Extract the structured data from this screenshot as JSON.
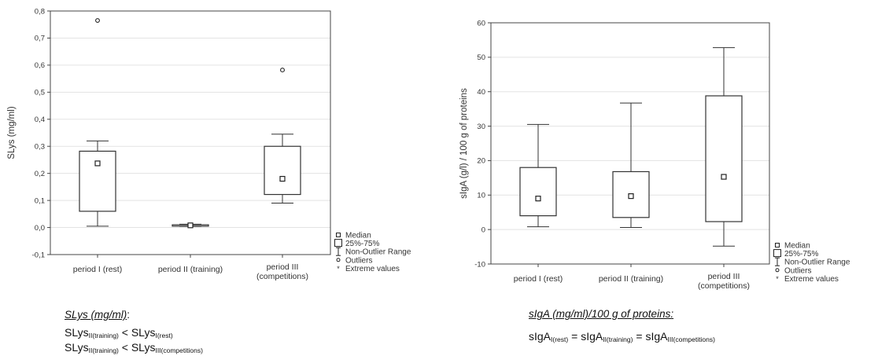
{
  "chart_data": [
    {
      "type": "box",
      "ylabel": "SLys (mg/ml)",
      "ylim": [
        -0.1,
        0.8
      ],
      "yticks": [
        "-0,1",
        "0,0",
        "0,1",
        "0,2",
        "0,3",
        "0,4",
        "0,5",
        "0,6",
        "0,7",
        "0,8"
      ],
      "grid": true,
      "categories": [
        "period I (rest)",
        "period II (training)",
        "period III (competitions)"
      ],
      "boxes": [
        {
          "min": 0.005,
          "q1": 0.06,
          "median": 0.237,
          "q3": 0.282,
          "max": 0.32,
          "outliers": [
            0.765
          ]
        },
        {
          "min": 0.004,
          "q1": 0.005,
          "median": 0.008,
          "q3": 0.01,
          "max": 0.012,
          "outliers": []
        },
        {
          "min": 0.09,
          "q1": 0.122,
          "median": 0.18,
          "q3": 0.3,
          "max": 0.345,
          "outliers": [
            0.582
          ]
        }
      ],
      "legend": [
        "Median",
        "25%-75%",
        "Non-Outlier Range",
        "Outliers",
        "Extreme values"
      ],
      "legend_position": "bottom-right"
    },
    {
      "type": "box",
      "ylabel": "sIgA (g/l) / 100 g of proteins",
      "ylim": [
        -10,
        60
      ],
      "yticks": [
        "-10",
        "0",
        "10",
        "20",
        "30",
        "40",
        "50",
        "60"
      ],
      "grid": true,
      "categories": [
        "period I (rest)",
        "period II (training)",
        "period III (competitions)"
      ],
      "boxes": [
        {
          "min": 0.8,
          "q1": 4,
          "median": 9,
          "q3": 18,
          "max": 30.5,
          "outliers": []
        },
        {
          "min": 0.6,
          "q1": 3.5,
          "median": 9.7,
          "q3": 16.8,
          "max": 36.7,
          "outliers": []
        },
        {
          "min": -4.8,
          "q1": 2.3,
          "median": 15.3,
          "q3": 38.8,
          "max": 52.8,
          "outliers": []
        }
      ],
      "legend": [
        "Median",
        "25%-75%",
        "Non-Outlier Range",
        "Outliers",
        "Extreme values"
      ],
      "legend_position": "bottom-right"
    }
  ],
  "notes": {
    "left": {
      "heading": "SLys (mg/ml)",
      "heading_suffix": ":",
      "lines": [
        {
          "a": "SLys",
          "a_sub": "II(training)",
          "op": " < ",
          "b": "SLys",
          "b_sub": "I(rest)"
        },
        {
          "a": "SLys",
          "a_sub": "II(training)",
          "op": " < ",
          "b": "SLys",
          "b_sub": "III(competitions)"
        }
      ]
    },
    "right": {
      "heading": "sIgA (mg/ml)/100 g of proteins:",
      "line": {
        "a": "sIgA",
        "a_sub": "I(rest)",
        "op1": " = ",
        "b": "sIgA",
        "b_sub": "II(training)",
        "op2": " = ",
        "c": "sIgA",
        "c_sub": "III(competitions)"
      }
    }
  }
}
